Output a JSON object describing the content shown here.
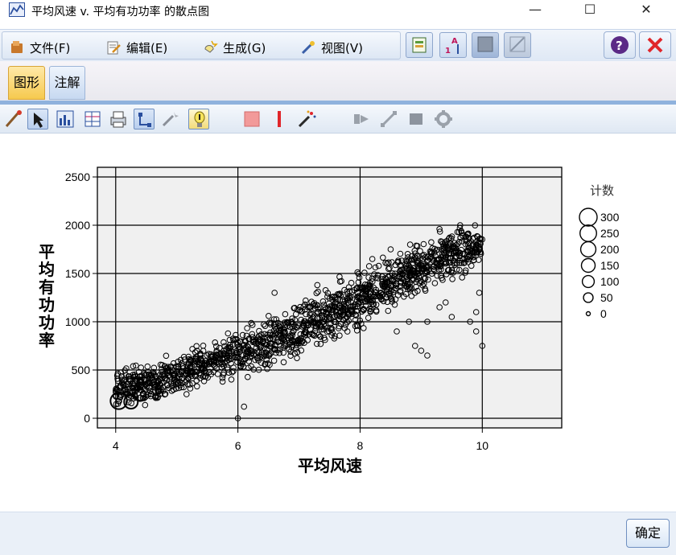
{
  "window": {
    "title": "平均风速 v. 平均有功功率 的散点图",
    "minimize_glyph": "—",
    "maximize_glyph": "☐",
    "close_glyph": "✕"
  },
  "menu": {
    "file": "文件(F)",
    "edit": "编辑(E)",
    "generate": "生成(G)",
    "view": "视图(V)",
    "help_glyph": "?",
    "close_glyph": "✕"
  },
  "tabs": {
    "graph": "图形",
    "annotation": "注解"
  },
  "buttons": {
    "ok": "确定"
  },
  "colors": {
    "accent": "#f6c94e",
    "tab_blue": "#8fb2dd",
    "plot_bg": "#f0f0f0",
    "close_red": "#e0262b",
    "help_purple": "#5b2a86"
  },
  "icons": [
    "brush-icon",
    "pointer-icon",
    "chart-icon",
    "table-icon",
    "print-icon",
    "link-icon",
    "wand-icon",
    "bulb-icon",
    "square-icon",
    "bar-icon",
    "sparkle-icon",
    "node-icon",
    "line-icon",
    "block-icon",
    "gear-icon"
  ],
  "chart_data": {
    "type": "scatter",
    "title": "",
    "xlabel": "平均风速",
    "ylabel": "平均有功功率",
    "xlim": [
      3.7,
      11.3
    ],
    "ylim": [
      -100,
      2600
    ],
    "xticks": [
      4,
      6,
      8,
      10
    ],
    "yticks": [
      0,
      500,
      1000,
      1500,
      2000,
      2500
    ],
    "grid": true,
    "legend": {
      "title": "计数",
      "placement": "right",
      "entries": [
        {
          "label": "300",
          "value": 300
        },
        {
          "label": "250",
          "value": 250
        },
        {
          "label": "200",
          "value": 200
        },
        {
          "label": "150",
          "value": 150
        },
        {
          "label": "100",
          "value": 100
        },
        {
          "label": "50",
          "value": 50
        },
        {
          "label": "0",
          "value": 0
        }
      ]
    },
    "trend": {
      "description": "dense band of points rising roughly linearly",
      "x": [
        4.0,
        4.5,
        5.0,
        5.5,
        6.0,
        6.5,
        7.0,
        7.5,
        8.0,
        8.5,
        9.0,
        9.5,
        10.0
      ],
      "center": [
        300,
        360,
        450,
        560,
        650,
        780,
        920,
        1080,
        1230,
        1400,
        1550,
        1720,
        1800
      ],
      "spread": [
        180,
        190,
        200,
        210,
        230,
        250,
        260,
        270,
        280,
        280,
        280,
        250,
        200
      ],
      "max_power": 2000
    },
    "outliers": [
      {
        "x": 6.0,
        "y": 0
      },
      {
        "x": 6.1,
        "y": 120
      },
      {
        "x": 6.6,
        "y": 1300
      },
      {
        "x": 7.3,
        "y": 1380
      },
      {
        "x": 8.2,
        "y": 1650
      },
      {
        "x": 8.5,
        "y": 1750
      },
      {
        "x": 8.6,
        "y": 900
      },
      {
        "x": 8.8,
        "y": 1000
      },
      {
        "x": 8.9,
        "y": 750
      },
      {
        "x": 9.0,
        "y": 700
      },
      {
        "x": 9.1,
        "y": 650
      },
      {
        "x": 9.1,
        "y": 1000
      },
      {
        "x": 9.4,
        "y": 1200
      },
      {
        "x": 9.5,
        "y": 1050
      },
      {
        "x": 9.8,
        "y": 1000
      },
      {
        "x": 9.9,
        "y": 1100
      },
      {
        "x": 9.9,
        "y": 900
      },
      {
        "x": 10.0,
        "y": 750
      },
      {
        "x": 9.95,
        "y": 1300
      },
      {
        "x": 9.3,
        "y": 1150
      }
    ],
    "large_markers": [
      {
        "x": 4.05,
        "y": 180,
        "count": 250
      },
      {
        "x": 4.25,
        "y": 170,
        "count": 150
      },
      {
        "x": 4.4,
        "y": 240,
        "count": 100
      }
    ]
  }
}
